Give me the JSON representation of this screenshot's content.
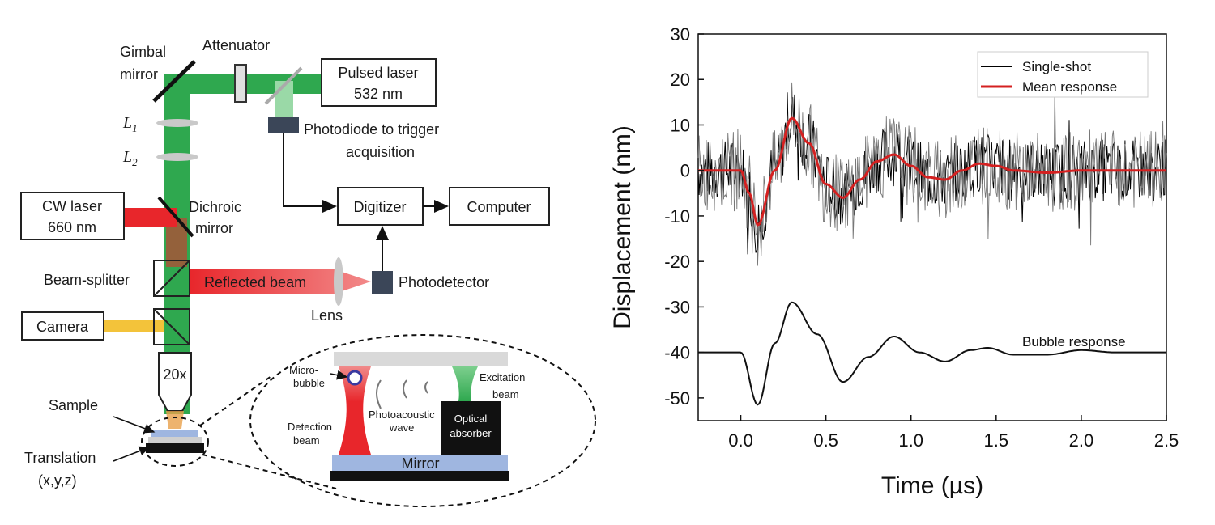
{
  "diagram": {
    "labels": {
      "gimbal_line1": "Gimbal",
      "gimbal_line2": "mirror",
      "attenuator": "Attenuator",
      "pulsed_line1": "Pulsed laser",
      "pulsed_line2": "532 nm",
      "l1_base": "L",
      "l1_sub": "1",
      "l2_base": "L",
      "l2_sub": "2",
      "photodiode_line1": "Photodiode to trigger",
      "photodiode_line2": "acquisition",
      "cw_line1": "CW laser",
      "cw_line2": "660 nm",
      "dichroic_line1": "Dichroic",
      "dichroic_line2": "mirror",
      "digitizer": "Digitizer",
      "computer": "Computer",
      "beamsplitter": "Beam-splitter",
      "reflected": "Reflected beam",
      "photodetector": "Photodetector",
      "lens": "Lens",
      "camera": "Camera",
      "objective": "20x",
      "sample": "Sample",
      "translation_line1": "Translation",
      "translation_line2": "(x,y,z)"
    },
    "inset": {
      "micro_line1": "Micro-",
      "micro_line2": "bubble",
      "photo_line1": "Photoacoustic",
      "photo_line2": "wave",
      "detection_line1": "Detection",
      "detection_line2": "beam",
      "excitation_line1": "Excitation",
      "excitation_line2": "beam",
      "absorber_line1": "Optical",
      "absorber_line2": "absorber",
      "mirror": "Mirror"
    },
    "colors": {
      "green": "#2fa84f",
      "light_green": "#9ad9a7",
      "red": "#e8262b",
      "yellow": "#f3c33a",
      "dark_box": "#3b4658",
      "slide_blue": "#9fb6e0"
    }
  },
  "chart_data": {
    "type": "line",
    "xlabel": "Time (µs)",
    "ylabel": "Displacement (nm)",
    "xlim": [
      -0.25,
      2.5
    ],
    "ylim": [
      -55,
      30
    ],
    "xticks": [
      "0.0",
      "0.5",
      "1.0",
      "1.5",
      "2.0",
      "2.5"
    ],
    "xtick_values": [
      0.0,
      0.5,
      1.0,
      1.5,
      2.0,
      2.5
    ],
    "yticks": [
      "30",
      "20",
      "10",
      "0",
      "-10",
      "-20",
      "-30",
      "-40",
      "-50"
    ],
    "ytick_values": [
      30,
      20,
      10,
      0,
      -10,
      -20,
      -30,
      -40,
      -50
    ],
    "legend_position": "top-right",
    "legend": [
      {
        "label": "Single-shot",
        "color": "#000000"
      },
      {
        "label": "Mean response",
        "color": "#d42020"
      }
    ],
    "annotation": "Bubble response",
    "series": [
      {
        "name": "Mean response",
        "color": "#d42020",
        "x": [
          -0.25,
          0.0,
          0.05,
          0.1,
          0.2,
          0.3,
          0.4,
          0.5,
          0.6,
          0.7,
          0.8,
          0.9,
          1.0,
          1.1,
          1.2,
          1.3,
          1.4,
          1.5,
          1.6,
          1.8,
          2.0,
          2.2,
          2.5
        ],
        "y": [
          0,
          0,
          -5,
          -12,
          0,
          11.5,
          6,
          -3,
          -6,
          -2,
          2,
          3.5,
          1,
          -1.5,
          -2,
          0,
          1.5,
          1,
          0,
          -0.5,
          0,
          0,
          0
        ]
      },
      {
        "name": "Bubble response",
        "color": "#111111",
        "x": [
          -0.25,
          0.0,
          0.1,
          0.2,
          0.3,
          0.45,
          0.6,
          0.75,
          0.9,
          1.05,
          1.2,
          1.35,
          1.45,
          1.6,
          1.8,
          2.0,
          2.2,
          2.5
        ],
        "y": [
          -40,
          -40,
          -51.5,
          -38,
          -29,
          -36,
          -46.5,
          -41,
          -36.5,
          -40,
          -42,
          -39.5,
          -39,
          -40.5,
          -40.5,
          -39.5,
          -40,
          -40
        ]
      }
    ]
  }
}
